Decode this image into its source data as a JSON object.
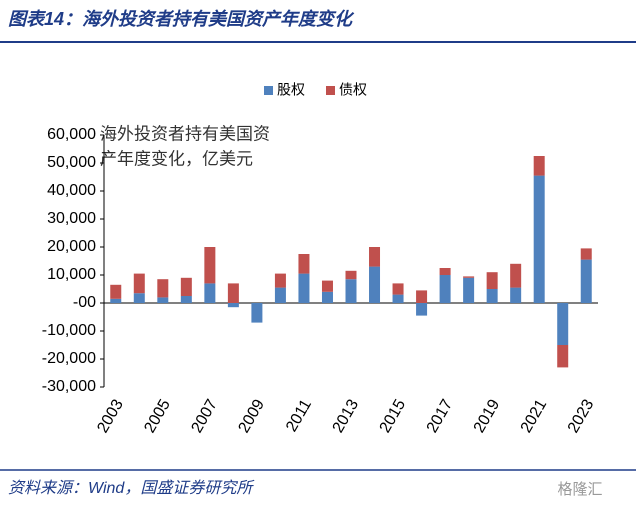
{
  "chart_data": {
    "type": "bar",
    "stacked": true,
    "title": "图表14：海外投资者持有美国资产年度变化",
    "annotation": [
      "海外投资者持有美国资",
      "产年度变化，亿美元"
    ],
    "source": "资料来源：Wind，国盛证券研究所",
    "watermark": "格隆汇",
    "categories": [
      "2003",
      null,
      "2005",
      null,
      "2007",
      null,
      "2009",
      null,
      "2011",
      null,
      "2013",
      null,
      "2015",
      null,
      "2017",
      null,
      "2019",
      null,
      "2021",
      null,
      "2023"
    ],
    "series": [
      {
        "name": "股权",
        "color": "#4f81bd",
        "values": [
          1500,
          3500,
          2000,
          2500,
          7000,
          -1500,
          -7000,
          5500,
          10500,
          4000,
          8500,
          13000,
          3000,
          -4500,
          10000,
          9000,
          5000,
          5500,
          45500,
          -15000,
          15500
        ]
      },
      {
        "name": "债权",
        "color": "#c0504d",
        "values": [
          5000,
          7000,
          6500,
          6500,
          13000,
          7000,
          0,
          5000,
          7000,
          4000,
          3000,
          7000,
          4000,
          4500,
          2500,
          500,
          6000,
          8500,
          7000,
          -8000,
          4000
        ]
      }
    ],
    "ylim": [
      -30000,
      60000
    ],
    "yticks": [
      {
        "value": -30000,
        "label": "-30,000"
      },
      {
        "value": -20000,
        "label": "-20,000"
      },
      {
        "value": -10000,
        "label": "-10,000"
      },
      {
        "value": 0,
        "label": "-00"
      },
      {
        "value": 10000,
        "label": "10,000"
      },
      {
        "value": 20000,
        "label": "20,000"
      },
      {
        "value": 30000,
        "label": "30,000"
      },
      {
        "value": 40000,
        "label": "40,000"
      },
      {
        "value": 50000,
        "label": "50,000"
      },
      {
        "value": 60000,
        "label": "60,000"
      }
    ],
    "legend": "top"
  }
}
